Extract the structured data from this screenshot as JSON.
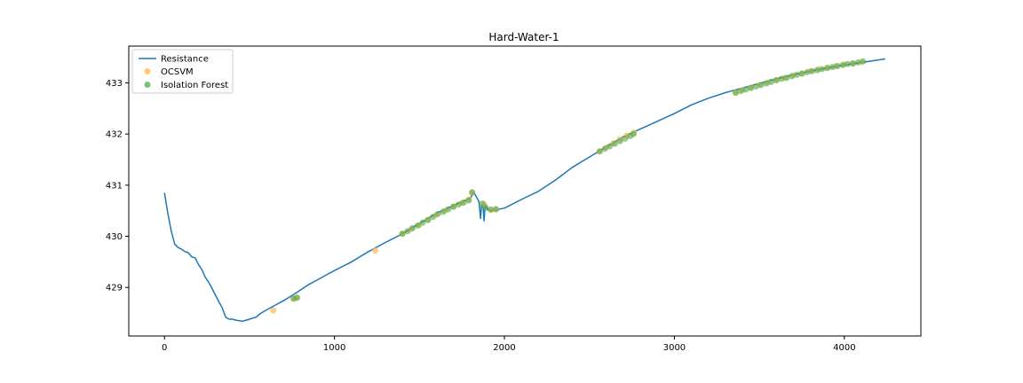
{
  "chart_data": {
    "type": "line",
    "title": "Hard-Water-1",
    "xlabel": "",
    "ylabel": "",
    "xlim": [
      -210,
      4450
    ],
    "ylim": [
      428.05,
      433.72
    ],
    "xticks": [
      0,
      1000,
      2000,
      3000,
      4000
    ],
    "yticks": [
      429,
      430,
      431,
      432,
      433
    ],
    "grid": false,
    "legend_position": "upper-left",
    "colors": {
      "resistance": "#1f77b4",
      "ocsvm": "#ffbf60",
      "isolation_forest": "#4daa4d"
    },
    "series": [
      {
        "name": "Resistance",
        "type": "line",
        "x": [
          0,
          20,
          40,
          60,
          80,
          100,
          120,
          140,
          160,
          180,
          200,
          220,
          240,
          260,
          280,
          300,
          320,
          340,
          360,
          380,
          400,
          420,
          440,
          460,
          480,
          500,
          520,
          540,
          560,
          580,
          600,
          650,
          700,
          750,
          800,
          850,
          900,
          950,
          1000,
          1100,
          1200,
          1300,
          1400,
          1500,
          1600,
          1700,
          1800,
          1820,
          1850,
          1860,
          1865,
          1870,
          1875,
          1880,
          1885,
          1890,
          1900,
          1920,
          1950,
          2000,
          2100,
          2200,
          2300,
          2400,
          2500,
          2600,
          2700,
          2800,
          2900,
          3000,
          3100,
          3200,
          3300,
          3400,
          3500,
          3600,
          3700,
          3800,
          3900,
          4000,
          4100,
          4200,
          4240
        ],
        "y": [
          430.85,
          430.45,
          430.1,
          429.85,
          429.78,
          429.75,
          429.7,
          429.68,
          429.6,
          429.58,
          429.45,
          429.35,
          429.2,
          429.1,
          428.98,
          428.85,
          428.72,
          428.6,
          428.42,
          428.38,
          428.38,
          428.36,
          428.35,
          428.34,
          428.36,
          428.38,
          428.4,
          428.42,
          428.48,
          428.52,
          428.56,
          428.65,
          428.74,
          428.84,
          428.95,
          429.06,
          429.15,
          429.24,
          429.33,
          429.5,
          429.7,
          429.88,
          430.05,
          430.25,
          430.45,
          430.6,
          430.75,
          430.86,
          430.68,
          430.35,
          430.6,
          430.62,
          430.55,
          430.3,
          430.55,
          430.62,
          430.52,
          430.5,
          430.52,
          430.55,
          430.72,
          430.88,
          431.1,
          431.35,
          431.55,
          431.75,
          431.95,
          432.1,
          432.25,
          432.4,
          432.57,
          432.7,
          432.81,
          432.9,
          432.99,
          433.08,
          433.16,
          433.23,
          433.29,
          433.35,
          433.4,
          433.45,
          433.47
        ]
      },
      {
        "name": "OCSVM",
        "type": "scatter",
        "x": [
          640,
          760,
          780,
          1240,
          1400,
          1450,
          1500,
          1550,
          1600,
          1650,
          1700,
          1750,
          1790,
          1810,
          1880,
          1920,
          1950,
          2560,
          2600,
          2640,
          2680,
          2720,
          2760,
          3360,
          3400,
          3450,
          3500,
          3550,
          3600,
          3650,
          3700,
          3750,
          3800,
          3850,
          3900,
          3950,
          4000,
          4050,
          4100
        ],
        "y": [
          428.55,
          428.78,
          428.8,
          429.72,
          430.05,
          430.14,
          430.22,
          430.32,
          430.42,
          430.5,
          430.58,
          430.65,
          430.72,
          430.86,
          430.63,
          430.52,
          430.53,
          431.66,
          431.74,
          431.82,
          431.9,
          431.97,
          432.03,
          432.81,
          432.86,
          432.91,
          432.96,
          433.01,
          433.06,
          433.1,
          433.15,
          433.19,
          433.23,
          433.27,
          433.3,
          433.33,
          433.36,
          433.38,
          433.41
        ]
      },
      {
        "name": "Isolation Forest",
        "type": "scatter",
        "x": [
          760,
          780,
          1400,
          1430,
          1460,
          1490,
          1520,
          1550,
          1580,
          1610,
          1640,
          1670,
          1700,
          1730,
          1760,
          1790,
          1810,
          1870,
          1890,
          1920,
          1950,
          2560,
          2590,
          2620,
          2650,
          2680,
          2710,
          2740,
          2760,
          3360,
          3390,
          3420,
          3450,
          3480,
          3510,
          3540,
          3570,
          3600,
          3630,
          3660,
          3690,
          3720,
          3750,
          3780,
          3810,
          3840,
          3870,
          3900,
          3930,
          3960,
          3990,
          4020,
          4050,
          4080,
          4110
        ],
        "y": [
          428.78,
          428.8,
          430.05,
          430.1,
          430.16,
          430.21,
          430.27,
          430.32,
          430.38,
          430.44,
          430.48,
          430.53,
          430.58,
          430.62,
          430.66,
          430.7,
          430.86,
          430.64,
          430.56,
          430.52,
          430.53,
          431.66,
          431.71,
          431.76,
          431.81,
          431.86,
          431.91,
          431.96,
          432.0,
          432.81,
          432.84,
          432.87,
          432.9,
          432.93,
          432.96,
          432.99,
          433.02,
          433.05,
          433.08,
          433.1,
          433.13,
          433.16,
          433.18,
          433.21,
          433.23,
          433.25,
          433.27,
          433.29,
          433.31,
          433.33,
          433.35,
          433.37,
          433.38,
          433.4,
          433.42
        ]
      }
    ]
  }
}
